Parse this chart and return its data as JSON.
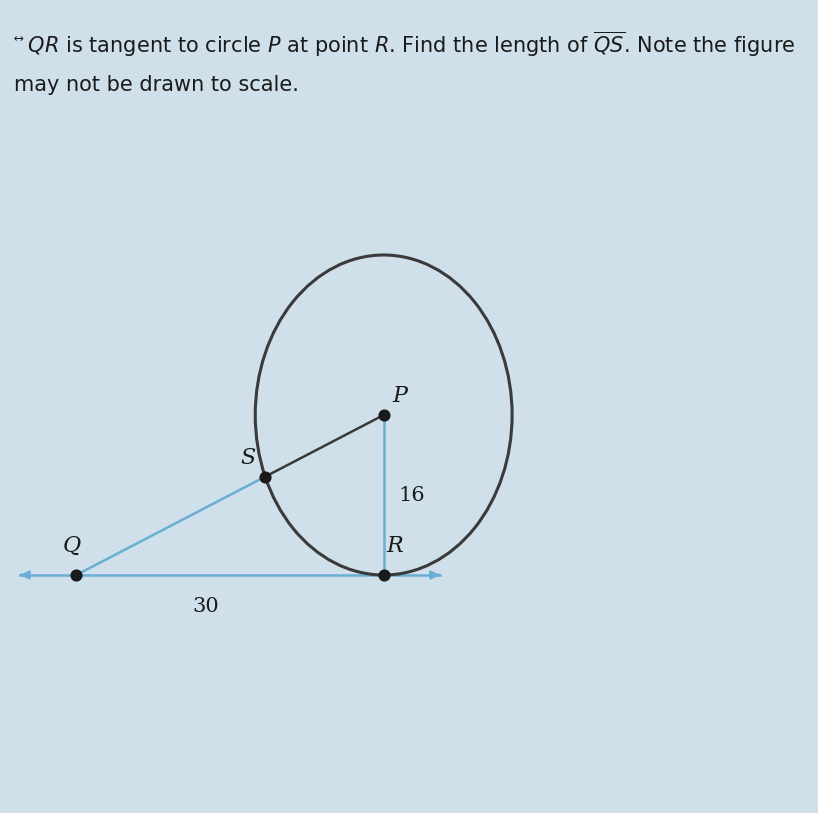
{
  "background_color": "#cfe0eb",
  "circle_color": "#3a3a3a",
  "tangent_line_color": "#6aaed6",
  "secant_line_color": "#6aaed6",
  "radius_line_color": "#6aaed6",
  "sp_line_color": "#3a3a3a",
  "dot_color": "#1a1a1a",
  "text_color": "#1a1a1a",
  "label_P": "P",
  "label_Q": "Q",
  "label_R": "R",
  "label_S": "S",
  "label_16": "16",
  "label_30": "30",
  "font_size_labels": 16,
  "font_size_numbers": 15,
  "font_size_title": 15,
  "circle_linewidth": 2.2,
  "line_linewidth": 1.8,
  "dot_size": 60
}
